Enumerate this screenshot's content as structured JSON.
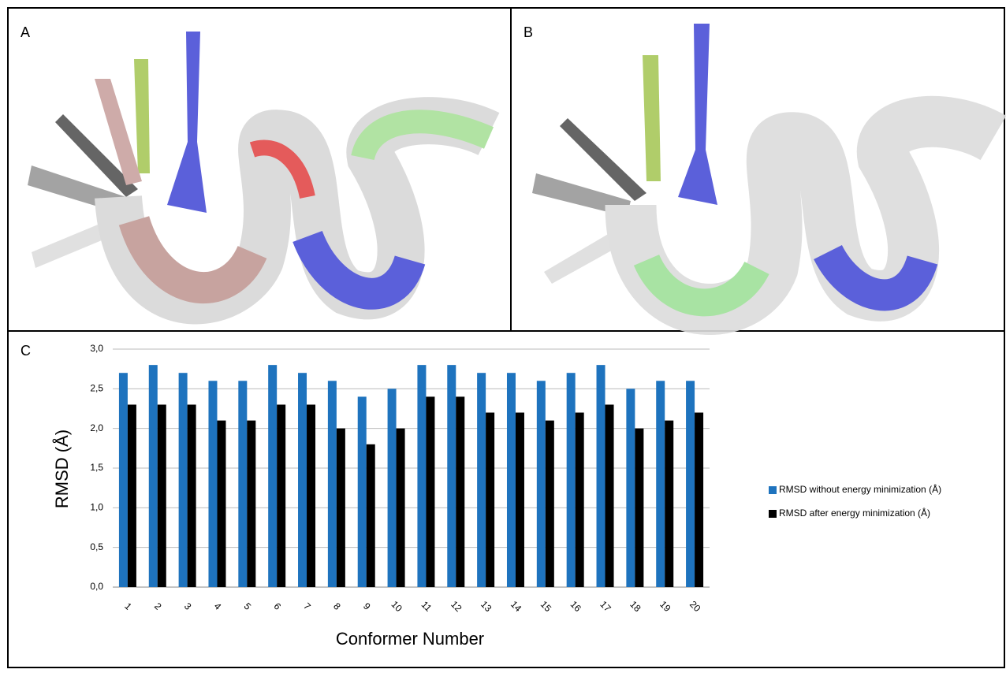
{
  "panel_labels": [
    "A",
    "B",
    "C"
  ],
  "chart_data": {
    "type": "bar",
    "y_label": "RMSD (Å)",
    "x_label": "Conformer Number",
    "categories": [
      "1",
      "2",
      "3",
      "4",
      "5",
      "6",
      "7",
      "8",
      "9",
      "10",
      "11",
      "12",
      "13",
      "14",
      "15",
      "16",
      "17",
      "18",
      "19",
      "20"
    ],
    "series": [
      {
        "name": "RMSD without energy minimization  (Å)",
        "color": "#1e73be",
        "values": [
          2.7,
          2.8,
          2.7,
          2.6,
          2.6,
          2.8,
          2.7,
          2.6,
          2.4,
          2.5,
          2.8,
          2.8,
          2.7,
          2.7,
          2.6,
          2.7,
          2.8,
          2.5,
          2.6,
          2.6
        ]
      },
      {
        "name": "RMSD after energy minimization  (Å)",
        "color": "#000000",
        "values": [
          2.3,
          2.3,
          2.3,
          2.1,
          2.1,
          2.3,
          2.3,
          2.0,
          1.8,
          2.0,
          2.4,
          2.4,
          2.2,
          2.2,
          2.1,
          2.2,
          2.3,
          2.0,
          2.1,
          2.2
        ]
      }
    ],
    "ylim": [
      0,
      3
    ],
    "yticks": [
      {
        "value": 0,
        "label": "0,0"
      },
      {
        "value": 0.5,
        "label": "0,5"
      },
      {
        "value": 1,
        "label": "1,0"
      },
      {
        "value": 1.5,
        "label": "1,5"
      },
      {
        "value": 2,
        "label": "2,0"
      },
      {
        "value": 2.5,
        "label": "2,5"
      },
      {
        "value": 3,
        "label": "3,0"
      }
    ],
    "grid": true,
    "legend": "right"
  }
}
